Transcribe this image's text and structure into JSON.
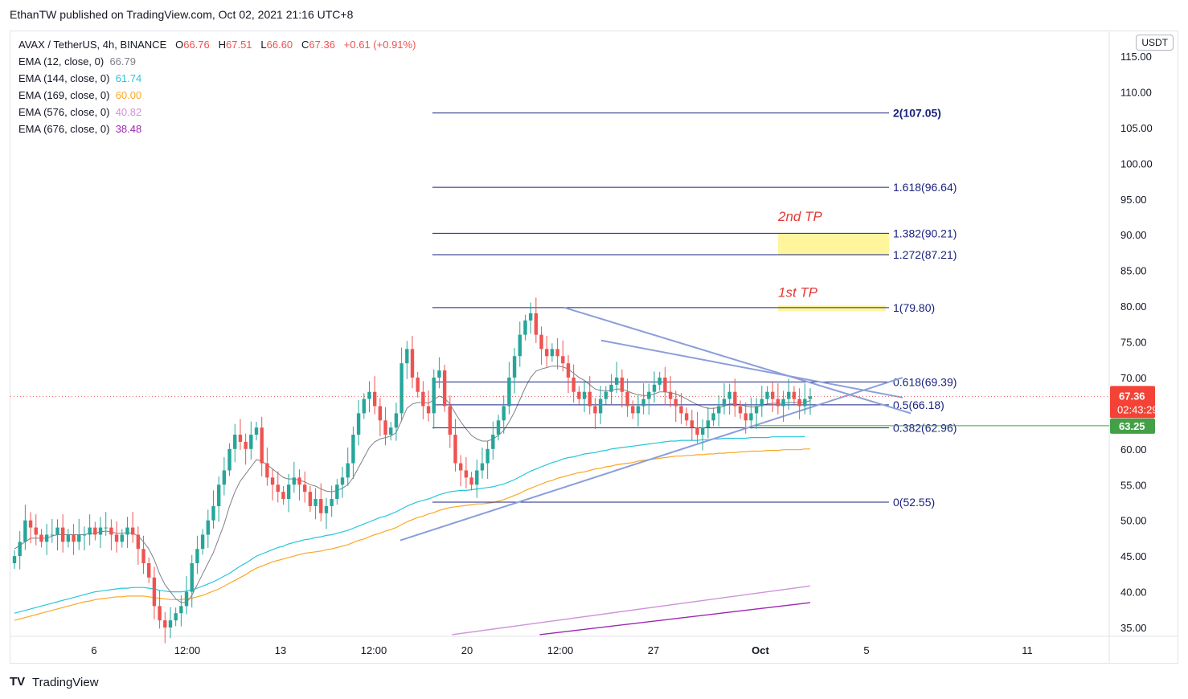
{
  "caption": "EthanTW published on TradingView.com, Oct 02, 2021 21:16 UTC+8",
  "header": {
    "symbol": "AVAX / TetherUS, 4h, BINANCE",
    "open_label": "O",
    "open": "66.76",
    "high_label": "H",
    "high": "67.51",
    "low_label": "L",
    "low": "66.60",
    "close_label": "C",
    "close": "67.36",
    "change": "+0.61 (+0.91%)"
  },
  "indicators": [
    {
      "label": "EMA (12, close, 0)",
      "value": "66.79",
      "color": "#7f8088"
    },
    {
      "label": "EMA (144, close, 0)",
      "value": "61.74",
      "color": "#26c6da"
    },
    {
      "label": "EMA (169, close, 0)",
      "value": "60.00",
      "color": "#f9a825"
    },
    {
      "label": "EMA (576, close, 0)",
      "value": "40.82",
      "color": "#ce93d8"
    },
    {
      "label": "EMA (676, close, 0)",
      "value": "38.48",
      "color": "#9c27b0"
    }
  ],
  "axis": {
    "unit": "USDT",
    "ticks": [
      "115.00",
      "110.00",
      "105.00",
      "100.00",
      "95.00",
      "90.00",
      "85.00",
      "80.00",
      "75.00",
      "70.00",
      "65.00",
      "60.00",
      "55.00",
      "50.00",
      "45.00",
      "40.00",
      "35.00"
    ],
    "last_price": "67.36",
    "countdown": "02:43:29",
    "green_price": "63.25"
  },
  "time_axis": [
    "6",
    "12:00",
    "13",
    "12:00",
    "20",
    "12:00",
    "27",
    "Oct",
    "5",
    "11"
  ],
  "fib_levels": [
    {
      "label": "2(107.05)",
      "value": 107.05
    },
    {
      "label": "1.618(96.64)",
      "value": 96.64
    },
    {
      "label": "1.382(90.21)",
      "value": 90.21
    },
    {
      "label": "1.272(87.21)",
      "value": 87.21
    },
    {
      "label": "1(79.80)",
      "value": 79.8
    },
    {
      "label": "0.618(69.39)",
      "value": 69.39
    },
    {
      "label": "0.5(66.18)",
      "value": 66.18
    },
    {
      "label": "0.382(62.96)",
      "value": 62.96
    },
    {
      "label": "0(52.55)",
      "value": 52.55
    }
  ],
  "annotations": {
    "tp1": "1st TP",
    "tp2": "2nd TP"
  },
  "colors": {
    "up": "#26a69a",
    "down": "#ef5350",
    "fib": "#1a237e",
    "trend": "#8c9eda",
    "highlight": "#fff59d"
  },
  "footer": {
    "logo": "TV",
    "brand": "TradingView"
  },
  "chart_data": {
    "type": "candlestick",
    "title": "AVAX / TetherUS, 4h, BINANCE",
    "ylim": [
      34,
      118
    ],
    "close_series": [
      45,
      47,
      50,
      49,
      48,
      47,
      48,
      48,
      49,
      47,
      48,
      47,
      48,
      48,
      49,
      48,
      49,
      49,
      48,
      47,
      48,
      49,
      48,
      46,
      44,
      42,
      38,
      36,
      35,
      36,
      37,
      38,
      40,
      44,
      46,
      48,
      50,
      52,
      55,
      57,
      60,
      62,
      61,
      60,
      62,
      63,
      58,
      56,
      55,
      54,
      53,
      55,
      56,
      55,
      54,
      52,
      53,
      51,
      52,
      53,
      55,
      56,
      58,
      62,
      65,
      67,
      68,
      66,
      64,
      62,
      63,
      65,
      72,
      74,
      70,
      68,
      66,
      65,
      70,
      71,
      66,
      62,
      58,
      57,
      56,
      55,
      57,
      58,
      60,
      62,
      64,
      66,
      70,
      73,
      76,
      78,
      79,
      76,
      74,
      73,
      74,
      73,
      72,
      70,
      68,
      67,
      68,
      66,
      65,
      67,
      68,
      69,
      70,
      68,
      66,
      65,
      66,
      67,
      68,
      69,
      70,
      68,
      67,
      66,
      65,
      64,
      63,
      62,
      63,
      64,
      65,
      66,
      67,
      68,
      66,
      65,
      64,
      65,
      66,
      67,
      68,
      67,
      66,
      67,
      68,
      67,
      66,
      67,
      67.36
    ],
    "ema12": [
      46,
      46.5,
      47,
      47.5,
      47.5,
      47.5,
      47.5,
      47.8,
      48,
      48,
      48,
      48,
      48,
      48,
      48.2,
      48.2,
      48.4,
      48.5,
      48.4,
      48.2,
      48.2,
      48.3,
      48.2,
      47.8,
      47,
      46,
      44.5,
      42.5,
      41,
      40,
      39,
      38.5,
      38.5,
      39.5,
      41,
      42.5,
      44,
      45.5,
      47.5,
      49.5,
      52,
      54,
      55.5,
      56.5,
      57.5,
      58.5,
      58.3,
      57.8,
      57.2,
      56.6,
      56,
      55.8,
      55.8,
      55.6,
      55.4,
      55,
      54.8,
      54.4,
      54.1,
      54,
      54.2,
      54.5,
      55,
      56,
      57.4,
      58.8,
      60.2,
      61,
      61.4,
      61.6,
      61.8,
      62.3,
      64,
      65.7,
      66.3,
      66.5,
      66.5,
      66.4,
      66.9,
      67.4,
      67.1,
      66.3,
      65,
      63.8,
      62.8,
      61.9,
      61.4,
      61.1,
      61.1,
      61.4,
      61.9,
      62.6,
      63.8,
      65.2,
      66.9,
      68.6,
      70,
      70.9,
      71.2,
      71.4,
      71.6,
      71.6,
      71.5,
      71.2,
      70.6,
      70,
      69.6,
      69,
      68.4,
      68.2,
      68.1,
      68.2,
      68.4,
      68.4,
      68.1,
      67.8,
      67.6,
      67.5,
      67.5,
      67.7,
      68,
      68,
      67.9,
      67.7,
      67.4,
      67,
      66.6,
      66.2,
      65.9,
      65.7,
      65.7,
      65.8,
      66,
      66.3,
      66.3,
      66.2,
      66,
      65.9,
      65.9,
      66.1,
      66.3,
      66.4,
      66.4,
      66.4,
      66.5,
      66.5,
      66.5,
      66.5,
      66.79
    ],
    "ema144": [
      37,
      37.2,
      37.4,
      37.6,
      37.8,
      38,
      38.2,
      38.4,
      38.6,
      38.8,
      39,
      39.2,
      39.4,
      39.6,
      39.8,
      40,
      40.1,
      40.2,
      40.3,
      40.4,
      40.5,
      40.5,
      40.6,
      40.6,
      40.6,
      40.5,
      40.4,
      40.2,
      40.1,
      40,
      40,
      40,
      40.1,
      40.3,
      40.5,
      40.8,
      41.1,
      41.4,
      41.8,
      42.2,
      42.6,
      43.1,
      43.6,
      44,
      44.5,
      45,
      45.3,
      45.6,
      45.9,
      46.2,
      46.4,
      46.7,
      46.9,
      47.1,
      47.3,
      47.4,
      47.6,
      47.7,
      47.9,
      48,
      48.2,
      48.4,
      48.6,
      48.9,
      49.2,
      49.5,
      49.8,
      50.1,
      50.4,
      50.6,
      50.9,
      51.2,
      51.6,
      52,
      52.3,
      52.6,
      52.8,
      53,
      53.3,
      53.6,
      53.8,
      54,
      54.1,
      54.2,
      54.2,
      54.3,
      54.4,
      54.5,
      54.6,
      54.7,
      54.9,
      55.1,
      55.4,
      55.7,
      56.1,
      56.5,
      56.9,
      57.2,
      57.5,
      57.8,
      58.1,
      58.3,
      58.6,
      58.8,
      58.9,
      59.1,
      59.3,
      59.4,
      59.5,
      59.7,
      59.8,
      60,
      60.1,
      60.2,
      60.3,
      60.4,
      60.5,
      60.6,
      60.7,
      60.8,
      60.9,
      61,
      61.1,
      61.1,
      61.2,
      61.2,
      61.2,
      61.2,
      61.3,
      61.3,
      61.4,
      61.4,
      61.5,
      61.5,
      61.5,
      61.5,
      61.5,
      61.6,
      61.6,
      61.6,
      61.6,
      61.7,
      61.7,
      61.7,
      61.7,
      61.7,
      61.7,
      61.74
    ],
    "ema169": [
      36,
      36.2,
      36.4,
      36.6,
      36.8,
      37,
      37.2,
      37.4,
      37.6,
      37.8,
      38,
      38.2,
      38.4,
      38.6,
      38.7,
      38.9,
      39,
      39.1,
      39.2,
      39.3,
      39.3,
      39.4,
      39.4,
      39.4,
      39.4,
      39.3,
      39.2,
      39.1,
      39,
      38.9,
      38.9,
      38.9,
      39,
      39.1,
      39.3,
      39.5,
      39.8,
      40.1,
      40.4,
      40.8,
      41.2,
      41.6,
      42,
      42.4,
      42.9,
      43.3,
      43.6,
      43.9,
      44.2,
      44.4,
      44.6,
      44.8,
      45,
      45.2,
      45.4,
      45.5,
      45.6,
      45.7,
      45.9,
      46,
      46.2,
      46.4,
      46.6,
      46.9,
      47.2,
      47.4,
      47.7,
      48,
      48.2,
      48.5,
      48.7,
      49,
      49.4,
      49.8,
      50.1,
      50.4,
      50.6,
      50.9,
      51.1,
      51.4,
      51.6,
      51.8,
      51.9,
      52,
      52.1,
      52.2,
      52.3,
      52.3,
      52.4,
      52.5,
      52.7,
      52.9,
      53.2,
      53.5,
      53.8,
      54.2,
      54.5,
      54.8,
      55.1,
      55.4,
      55.6,
      55.9,
      56.1,
      56.3,
      56.5,
      56.7,
      56.8,
      57,
      57.2,
      57.3,
      57.5,
      57.6,
      57.8,
      57.9,
      58,
      58.1,
      58.3,
      58.4,
      58.5,
      58.6,
      58.7,
      58.8,
      58.9,
      59,
      59,
      59.1,
      59.1,
      59.2,
      59.2,
      59.3,
      59.3,
      59.4,
      59.4,
      59.5,
      59.5,
      59.6,
      59.6,
      59.7,
      59.7,
      59.7,
      59.8,
      59.8,
      59.8,
      59.9,
      59.9,
      59.9,
      59.9,
      60,
      60.0
    ],
    "ema576_endpoints": [
      [
        0.55,
        34.0
      ],
      [
        1.0,
        40.82
      ]
    ],
    "ema676_endpoints": [
      [
        0.66,
        34.0
      ],
      [
        1.0,
        38.48
      ]
    ]
  }
}
